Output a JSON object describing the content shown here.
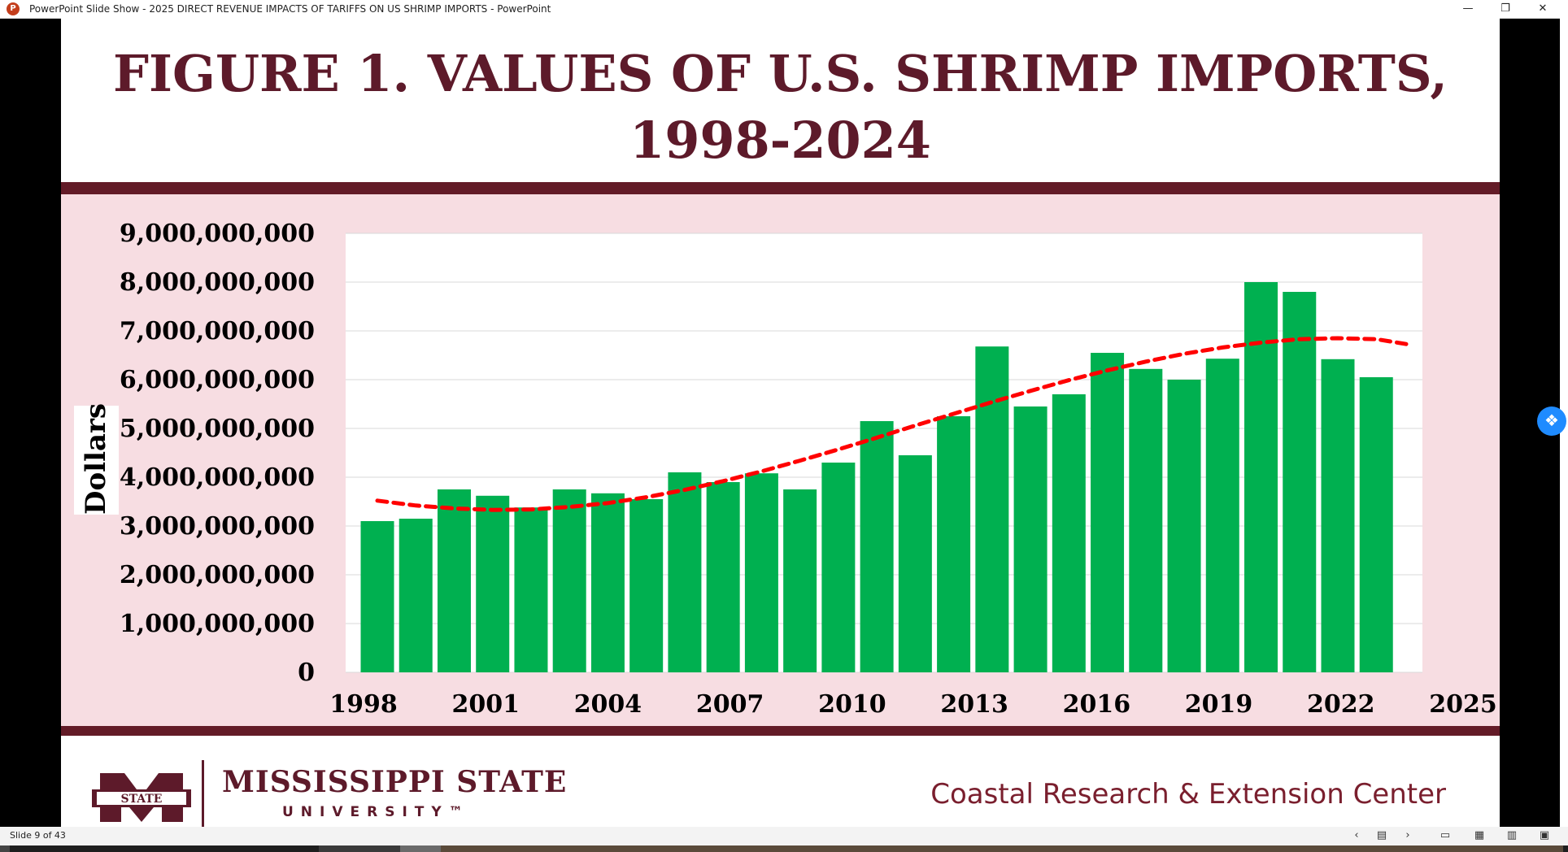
{
  "window": {
    "app_icon_letter": "P",
    "title": "PowerPoint Slide Show  -  2025 DIRECT REVENUE IMPACTS OF TARIFFS ON US SHRIMP IMPORTS - PowerPoint",
    "minimize": "—",
    "restore": "❐",
    "close": "✕"
  },
  "slide": {
    "title_line1": "FIGURE 1. VALUES OF U.S. SHRIMP IMPORTS,",
    "title_line2": "1998-2024",
    "footer": {
      "logo_text": "STATE",
      "university_name": "MISSISSIPPI STATE",
      "university_sub": "UNIVERSITY™",
      "center": "Coastal Research & Extension Center"
    }
  },
  "chart_data": {
    "type": "bar",
    "ylabel": "Dollars",
    "ylim": [
      0,
      9000000000
    ],
    "yticks": [
      {
        "value": 0,
        "label": "0"
      },
      {
        "value": 1000000000,
        "label": "1,000,000,000"
      },
      {
        "value": 2000000000,
        "label": "2,000,000,000"
      },
      {
        "value": 3000000000,
        "label": "3,000,000,000"
      },
      {
        "value": 4000000000,
        "label": "4,000,000,000"
      },
      {
        "value": 5000000000,
        "label": "5,000,000,000"
      },
      {
        "value": 6000000000,
        "label": "6,000,000,000"
      },
      {
        "value": 7000000000,
        "label": "7,000,000,000"
      },
      {
        "value": 8000000000,
        "label": "8,000,000,000"
      },
      {
        "value": 9000000000,
        "label": "9,000,000,000"
      }
    ],
    "xlim": [
      1998,
      2025
    ],
    "xticks": [
      "1998",
      "2001",
      "2004",
      "2007",
      "2010",
      "2013",
      "2016",
      "2019",
      "2022",
      "2025"
    ],
    "bar_color": "#00b050",
    "trend_color": "#ff0000",
    "grid": true,
    "series": [
      {
        "name": "Shrimp import value",
        "x": [
          1998,
          1999,
          2000,
          2001,
          2002,
          2003,
          2004,
          2005,
          2006,
          2007,
          2008,
          2009,
          2010,
          2011,
          2012,
          2013,
          2014,
          2015,
          2016,
          2017,
          2018,
          2019,
          2020,
          2021,
          2022,
          2023,
          2024
        ],
        "values": [
          3100000000,
          3150000000,
          3750000000,
          3620000000,
          3380000000,
          3750000000,
          3670000000,
          3550000000,
          4100000000,
          3900000000,
          4080000000,
          3750000000,
          4300000000,
          5150000000,
          4450000000,
          5250000000,
          6680000000,
          5450000000,
          5700000000,
          6550000000,
          6220000000,
          6000000000,
          6430000000,
          8000000000,
          7800000000,
          6420000000,
          6050000000
        ]
      }
    ],
    "trendline": {
      "type": "polynomial",
      "x": [
        1998,
        1999,
        2000,
        2001,
        2002,
        2003,
        2004,
        2005,
        2006,
        2007,
        2008,
        2009,
        2010,
        2011,
        2012,
        2013,
        2014,
        2015,
        2016,
        2017,
        2018,
        2019,
        2020,
        2021,
        2022,
        2023,
        2024,
        2025
      ],
      "values": [
        3520000000,
        3420000000,
        3360000000,
        3330000000,
        3340000000,
        3390000000,
        3470000000,
        3590000000,
        3740000000,
        3920000000,
        4120000000,
        4340000000,
        4570000000,
        4810000000,
        5060000000,
        5300000000,
        5540000000,
        5770000000,
        5990000000,
        6190000000,
        6370000000,
        6530000000,
        6660000000,
        6760000000,
        6830000000,
        6850000000,
        6830000000,
        6730000000
      ]
    }
  },
  "statusbar": {
    "slide_counter": "Slide 9 of 43",
    "prev": "‹",
    "notes": "▤",
    "next": "›",
    "view_normal": "▭",
    "view_sorter": "▦",
    "view_reading": "▥",
    "view_slideshow": "▣"
  },
  "dropbox_icon": "❖"
}
